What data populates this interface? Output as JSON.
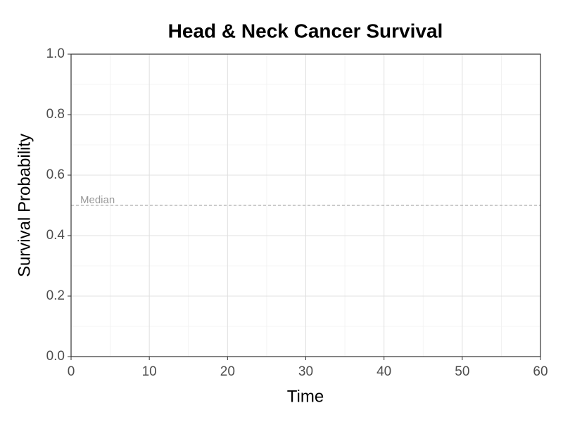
{
  "chart_data": {
    "type": "line",
    "title": "Head & Neck Cancer Survival",
    "xlabel": "Time",
    "ylabel": "Survival Probability",
    "series": [],
    "xlim": [
      0,
      60
    ],
    "xticks": [
      0,
      10,
      20,
      30,
      40,
      50,
      60
    ],
    "x_minor_ticks": [
      5,
      15,
      25,
      35,
      45,
      55
    ],
    "ylim": [
      0,
      1
    ],
    "yticks": [
      {
        "value": 0,
        "label": "0.0"
      },
      0.2,
      0.4,
      0.6,
      0.8,
      {
        "value": 1,
        "label": "1.0"
      }
    ],
    "y_minor_ticks": [
      0.1,
      0.3,
      0.5,
      0.7,
      0.9
    ],
    "grid": true,
    "reference_lines": [
      {
        "y": 0.5,
        "label": "Median",
        "color": "#999999"
      }
    ]
  }
}
